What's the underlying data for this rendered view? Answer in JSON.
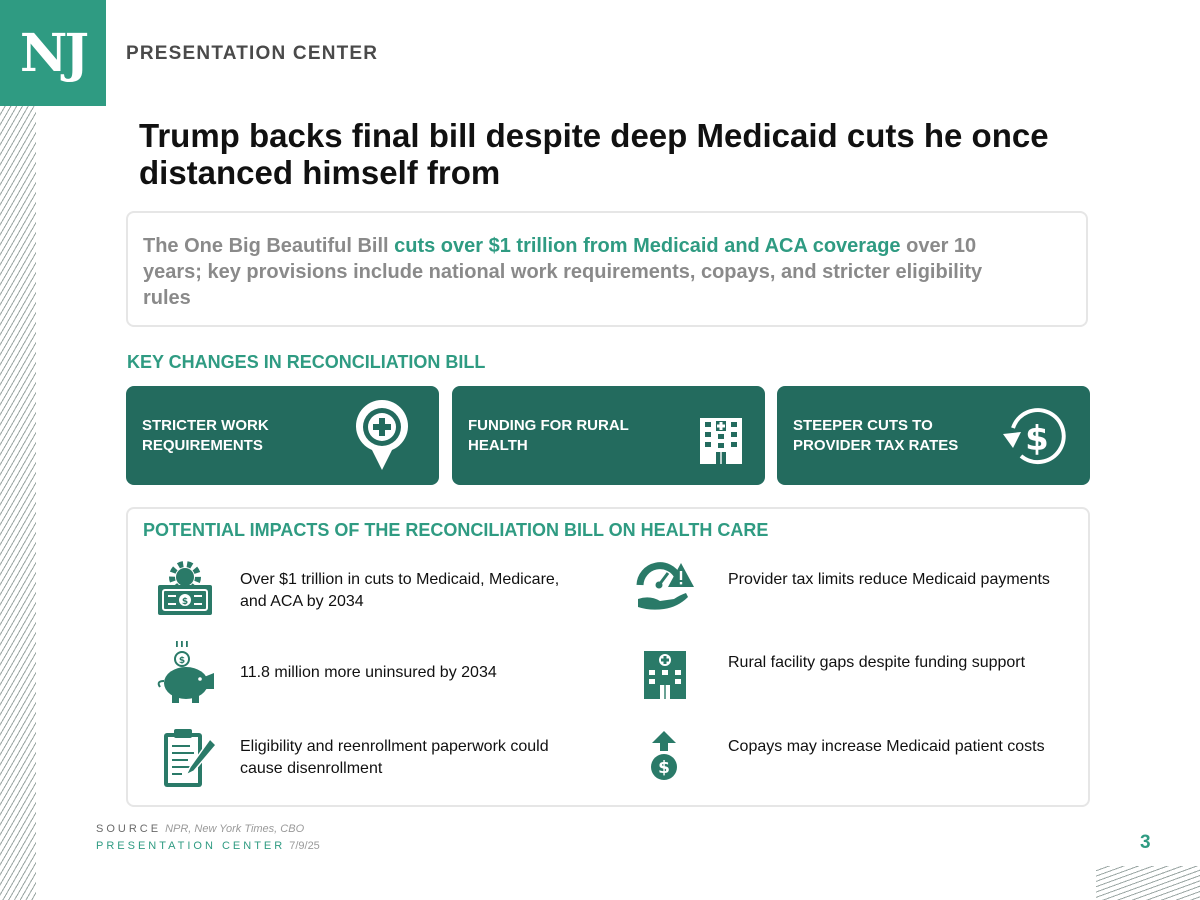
{
  "brand": {
    "logo_text": "NJ",
    "name": "PRESENTATION CENTER"
  },
  "title": "Trump backs final bill despite deep Medicaid cuts he once distanced himself from",
  "summary": {
    "prefix": "The One Big Beautiful Bill ",
    "highlight": "cuts over $1 trillion from Medicaid and ACA coverage",
    "suffix": " over 10 years; key provisions include national work requirements, copays, and stricter eligibility rules"
  },
  "key_changes": {
    "label": "KEY CHANGES IN RECONCILIATION BILL",
    "cards": [
      {
        "text": "STRICTER WORK REQUIREMENTS",
        "icon": "medical-pin-icon"
      },
      {
        "text": "FUNDING FOR RURAL HEALTH",
        "icon": "hospital-building-icon"
      },
      {
        "text": "STEEPER CUTS TO PROVIDER TAX RATES",
        "icon": "dollar-cycle-icon"
      }
    ]
  },
  "impacts": {
    "title": "POTENTIAL IMPACTS OF THE RECONCILIATION BILL ON HEALTH CARE",
    "items": [
      {
        "text": "Over $1 trillion in cuts to Medicaid, Medicare, and ACA by 2034",
        "icon": "money-gear-icon"
      },
      {
        "text": "Provider tax limits reduce Medicaid payments",
        "icon": "gauge-warning-hand-icon"
      },
      {
        "text": "11.8 million more uninsured by 2034",
        "icon": "piggy-bank-icon"
      },
      {
        "text": "Rural facility gaps despite funding support",
        "icon": "hospital-icon"
      },
      {
        "text": "Eligibility and reenrollment paperwork could cause disenrollment",
        "icon": "clipboard-pen-icon"
      },
      {
        "text": "Copays may increase Medicaid patient costs",
        "icon": "cost-up-icon"
      }
    ]
  },
  "footer": {
    "source_label": "SOURCE",
    "source_value": "NPR, New York Times, CBO",
    "center_label": "PRESENTATION CENTER",
    "date": "7/9/25",
    "page_number": "3"
  },
  "colors": {
    "accent": "#2f9b82",
    "card": "#236b5e",
    "icon": "#2a7a68"
  }
}
